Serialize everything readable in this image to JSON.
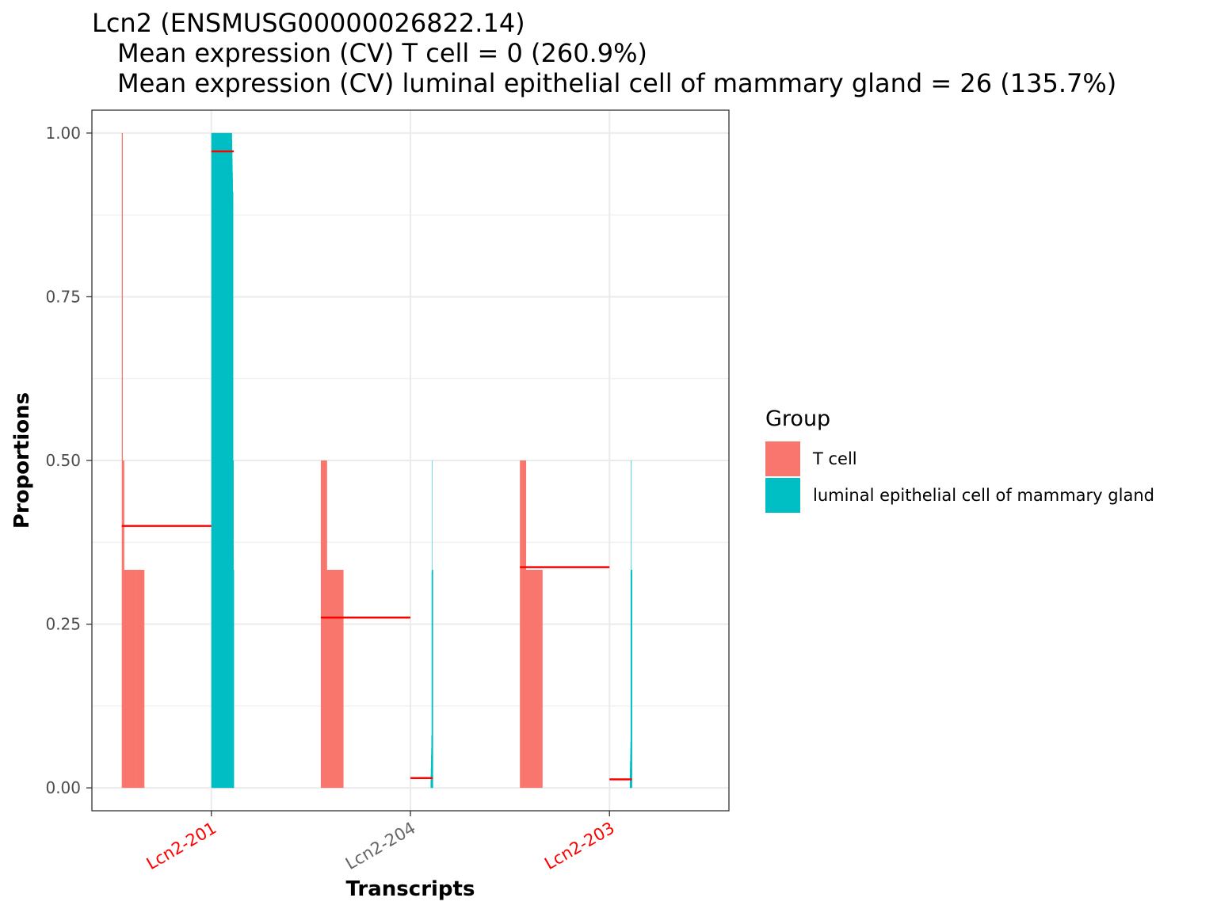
{
  "chart_data": {
    "type": "bar",
    "title": "Lcn2 (ENSMUSG00000026822.14)",
    "subtitle_lines": [
      "Mean expression (CV) T cell = 0 (260.9%)",
      "Mean expression (CV) luminal epithelial cell of mammary gland = 26 (135.7%)"
    ],
    "xlabel": "Transcripts",
    "ylabel": "Proportions",
    "ylim": [
      -0.035,
      1.035
    ],
    "yticks": [
      0.0,
      0.25,
      0.5,
      0.75,
      1.0
    ],
    "ytick_labels": [
      "0.00",
      "0.25",
      "0.50",
      "0.75",
      "1.00"
    ],
    "grid": true,
    "categories": [
      {
        "label": "Lcn2-201",
        "color": "#ff0000"
      },
      {
        "label": "Lcn2-204",
        "color": "#666666"
      },
      {
        "label": "Lcn2-203",
        "color": "#ff0000"
      }
    ],
    "legend": {
      "title": "Group",
      "position": "right",
      "entries": [
        {
          "name": "T cell",
          "color": "#F8766D"
        },
        {
          "name": "luminal epithelial cell of mammary gland",
          "color": "#00BFC4"
        }
      ]
    },
    "series": [
      {
        "name": "T cell",
        "color": "#F8766D",
        "distributions": [
          {
            "category": "Lcn2-201",
            "values": [
              1.0,
              0.5,
              0.5,
              0.333,
              0.333,
              0.333,
              0.333,
              0.333,
              0.333,
              0.333,
              0.333,
              0.333,
              0.333,
              0.333,
              0.333,
              0.333,
              0.333,
              0.333,
              0.333,
              0.333,
              0.333,
              0.333,
              0.333,
              0.333,
              0.333,
              0.333,
              0.333,
              0.333,
              0.333,
              0.333
            ]
          },
          {
            "category": "Lcn2-204",
            "values": [
              0.5,
              0.5,
              0.5,
              0.5,
              0.5,
              0.5,
              0.5,
              0.5,
              0.333,
              0.333,
              0.333,
              0.333,
              0.333,
              0.333,
              0.333,
              0.333,
              0.333,
              0.333,
              0.333,
              0.333,
              0.333,
              0.333,
              0.333,
              0.333,
              0.333,
              0.333,
              0.333,
              0.333,
              0.333,
              0.333
            ]
          },
          {
            "category": "Lcn2-203",
            "values": [
              0.5,
              0.5,
              0.5,
              0.5,
              0.5,
              0.5,
              0.5,
              0.5,
              0.333,
              0.333,
              0.333,
              0.333,
              0.333,
              0.333,
              0.333,
              0.333,
              0.333,
              0.333,
              0.333,
              0.333,
              0.333,
              0.333,
              0.333,
              0.333,
              0.333,
              0.333,
              0.333,
              0.333,
              0.333,
              0.333
            ]
          }
        ],
        "means": [
          0.4,
          0.26,
          0.337
        ]
      },
      {
        "name": "luminal epithelial cell of mammary gland",
        "color": "#00BFC4",
        "distributions": [
          {
            "category": "Lcn2-201",
            "values": [
              1.0,
              1.0,
              1.0,
              1.0,
              1.0,
              1.0,
              1.0,
              1.0,
              1.0,
              1.0,
              1.0,
              1.0,
              1.0,
              1.0,
              1.0,
              1.0,
              1.0,
              1.0,
              1.0,
              1.0,
              1.0,
              1.0,
              1.0,
              1.0,
              1.0,
              1.0,
              1.0,
              1.0,
              1.0,
              1.0,
              1.0,
              1.0,
              1.0,
              1.0,
              1.0,
              1.0,
              1.0,
              1.0,
              1.0,
              1.0,
              1.0,
              1.0,
              1.0,
              1.0,
              1.0,
              1.0,
              1.0,
              1.0,
              1.0,
              1.0,
              1.0,
              1.0,
              1.0,
              1.0,
              1.0,
              1.0,
              1.0,
              1.0,
              1.0,
              1.0,
              1.0,
              1.0,
              1.0,
              1.0,
              1.0,
              1.0,
              1.0,
              1.0,
              1.0,
              1.0,
              1.0,
              1.0,
              1.0,
              1.0,
              1.0,
              1.0,
              1.0,
              1.0,
              1.0,
              1.0,
              1.0,
              1.0,
              1.0,
              1.0,
              1.0,
              1.0,
              1.0,
              1.0,
              1.0,
              1.0,
              1.0,
              1.0,
              1.0,
              1.0,
              1.0,
              1.0,
              1.0,
              1.0,
              1.0,
              1.0,
              1.0,
              1.0,
              1.0,
              1.0,
              1.0,
              1.0,
              1.0,
              1.0,
              1.0,
              1.0,
              1.0,
              1.0,
              1.0,
              1.0,
              1.0,
              1.0,
              1.0,
              1.0,
              1.0,
              1.0,
              1.0,
              1.0,
              1.0,
              1.0,
              1.0,
              1.0,
              1.0,
              1.0,
              1.0,
              1.0,
              1.0,
              1.0,
              1.0,
              1.0,
              1.0,
              1.0,
              1.0,
              1.0,
              1.0,
              1.0,
              1.0,
              1.0,
              1.0,
              1.0,
              1.0,
              1.0,
              1.0,
              1.0,
              1.0,
              1.0,
              1.0,
              1.0,
              1.0,
              1.0,
              1.0,
              1.0,
              1.0,
              1.0,
              1.0,
              1.0,
              1.0,
              1.0,
              0.99,
              0.98,
              0.97,
              0.96,
              0.95,
              0.94,
              0.93,
              0.91,
              0.91,
              0.91,
              0.5,
              0.5,
              0.5,
              0.333,
              0.333,
              0.333
            ]
          },
          {
            "category": "Lcn2-204",
            "values": [
              0.0,
              0.0,
              0.0,
              0.0,
              0.0,
              0.0,
              0.0,
              0.0,
              0.0,
              0.0,
              0.0,
              0.0,
              0.0,
              0.0,
              0.0,
              0.0,
              0.0,
              0.0,
              0.0,
              0.0,
              0.0,
              0.0,
              0.0,
              0.0,
              0.0,
              0.0,
              0.0,
              0.0,
              0.0,
              0.0,
              0.0,
              0.0,
              0.0,
              0.0,
              0.0,
              0.0,
              0.0,
              0.0,
              0.0,
              0.0,
              0.0,
              0.0,
              0.0,
              0.0,
              0.0,
              0.0,
              0.0,
              0.0,
              0.0,
              0.0,
              0.0,
              0.0,
              0.0,
              0.0,
              0.0,
              0.0,
              0.0,
              0.0,
              0.0,
              0.0,
              0.0,
              0.0,
              0.0,
              0.0,
              0.0,
              0.0,
              0.0,
              0.0,
              0.0,
              0.0,
              0.0,
              0.0,
              0.0,
              0.0,
              0.0,
              0.0,
              0.0,
              0.0,
              0.0,
              0.0,
              0.0,
              0.0,
              0.0,
              0.0,
              0.0,
              0.0,
              0.0,
              0.0,
              0.0,
              0.0,
              0.0,
              0.0,
              0.0,
              0.0,
              0.0,
              0.0,
              0.0,
              0.0,
              0.0,
              0.0,
              0.0,
              0.0,
              0.0,
              0.0,
              0.0,
              0.0,
              0.0,
              0.0,
              0.0,
              0.0,
              0.0,
              0.0,
              0.0,
              0.0,
              0.0,
              0.0,
              0.0,
              0.0,
              0.0,
              0.0,
              0.0,
              0.0,
              0.0,
              0.0,
              0.0,
              0.0,
              0.0,
              0.0,
              0.0,
              0.0,
              0.0,
              0.0,
              0.0,
              0.0,
              0.0,
              0.0,
              0.0,
              0.0,
              0.0,
              0.0,
              0.0,
              0.0,
              0.0,
              0.0,
              0.0,
              0.0,
              0.0,
              0.0,
              0.0,
              0.0,
              0.0,
              0.0,
              0.0,
              0.01,
              0.02,
              0.03,
              0.04,
              0.05,
              0.06,
              0.08,
              0.08,
              0.33,
              0.333,
              0.333,
              0.5,
              0.333,
              0.333,
              0.333,
              0.333,
              0.333
            ]
          },
          {
            "category": "Lcn2-203",
            "values": [
              0.0,
              0.0,
              0.0,
              0.0,
              0.0,
              0.0,
              0.0,
              0.0,
              0.0,
              0.0,
              0.0,
              0.0,
              0.0,
              0.0,
              0.0,
              0.0,
              0.0,
              0.0,
              0.0,
              0.0,
              0.0,
              0.0,
              0.0,
              0.0,
              0.0,
              0.0,
              0.0,
              0.0,
              0.0,
              0.0,
              0.0,
              0.0,
              0.0,
              0.0,
              0.0,
              0.0,
              0.0,
              0.0,
              0.0,
              0.0,
              0.0,
              0.0,
              0.0,
              0.0,
              0.0,
              0.0,
              0.0,
              0.0,
              0.0,
              0.0,
              0.0,
              0.0,
              0.0,
              0.0,
              0.0,
              0.0,
              0.0,
              0.0,
              0.0,
              0.0,
              0.0,
              0.0,
              0.0,
              0.0,
              0.0,
              0.0,
              0.0,
              0.0,
              0.0,
              0.0,
              0.0,
              0.0,
              0.0,
              0.0,
              0.0,
              0.0,
              0.0,
              0.0,
              0.0,
              0.0,
              0.0,
              0.0,
              0.0,
              0.0,
              0.0,
              0.0,
              0.0,
              0.0,
              0.0,
              0.0,
              0.0,
              0.0,
              0.0,
              0.0,
              0.0,
              0.0,
              0.0,
              0.0,
              0.0,
              0.0,
              0.0,
              0.0,
              0.0,
              0.0,
              0.0,
              0.0,
              0.0,
              0.0,
              0.0,
              0.0,
              0.0,
              0.0,
              0.0,
              0.0,
              0.0,
              0.0,
              0.0,
              0.0,
              0.0,
              0.0,
              0.0,
              0.0,
              0.0,
              0.0,
              0.0,
              0.0,
              0.0,
              0.0,
              0.0,
              0.0,
              0.0,
              0.0,
              0.0,
              0.0,
              0.0,
              0.0,
              0.0,
              0.0,
              0.0,
              0.0,
              0.0,
              0.0,
              0.0,
              0.0,
              0.0,
              0.0,
              0.0,
              0.0,
              0.0,
              0.0,
              0.0,
              0.0,
              0.0,
              0.0,
              0.0,
              0.0,
              0.0,
              0.02,
              0.03,
              0.04,
              0.05,
              0.06,
              0.07,
              0.33,
              0.333,
              0.333,
              0.5,
              0.5,
              0.333,
              0.333,
              0.333,
              0.333,
              0.333
            ]
          }
        ],
        "means": [
          0.972,
          0.015,
          0.013
        ]
      }
    ]
  }
}
